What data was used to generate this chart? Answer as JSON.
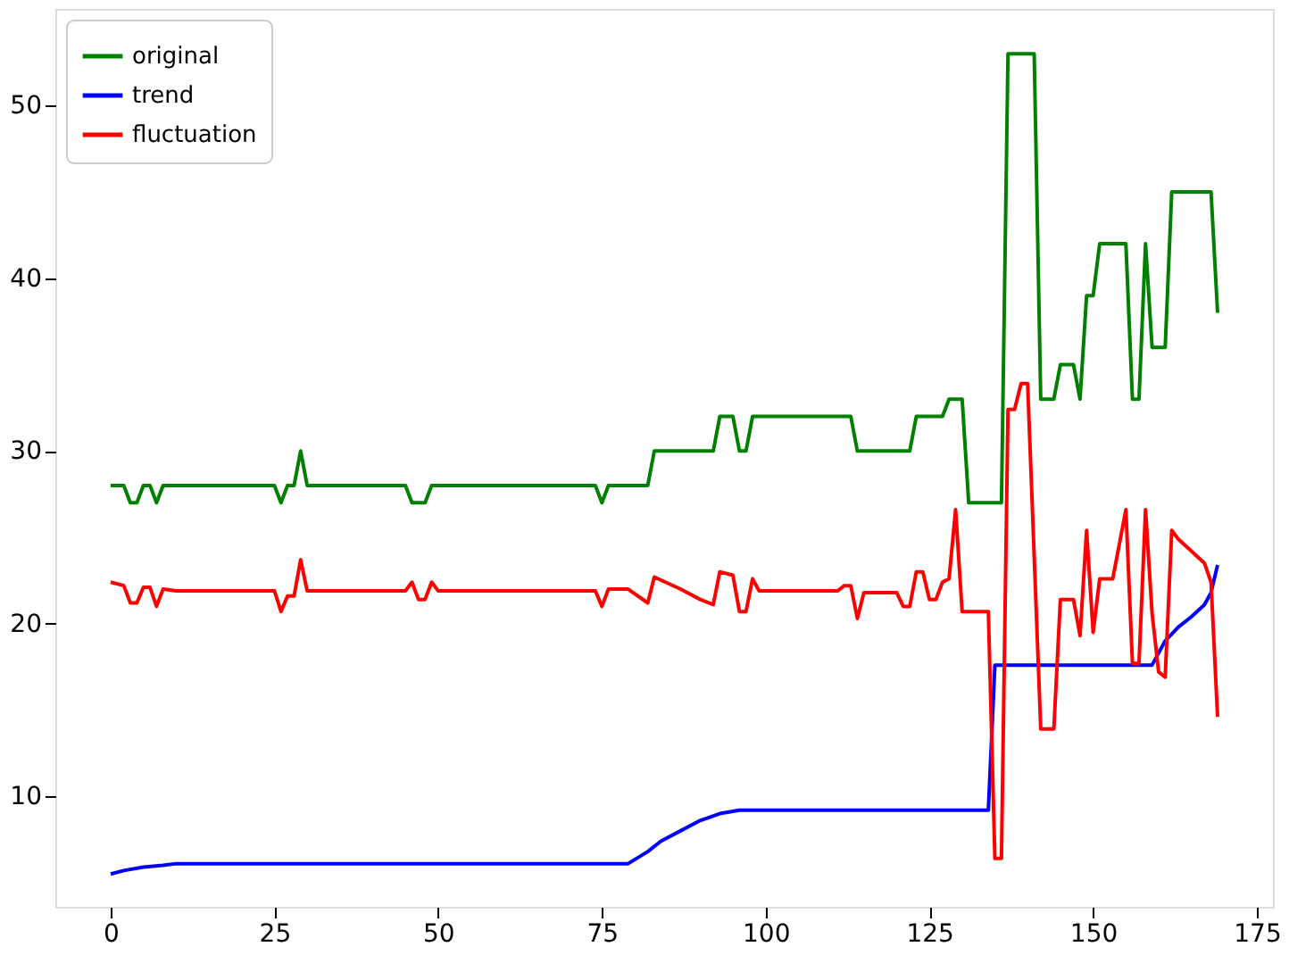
{
  "chart_data": {
    "type": "line",
    "legend": "top left",
    "grid": false,
    "marker": "none",
    "line_style": "solid",
    "xlim": [
      -8.45,
      177.45
    ],
    "xticks": [
      0,
      25,
      50,
      75,
      100,
      125,
      150,
      175
    ],
    "ylim": [
      3.6,
      55.6
    ],
    "yticks": [
      10,
      20,
      30,
      40,
      50
    ],
    "series": [
      {
        "name": "original",
        "color": "#008000",
        "x": [
          0,
          2,
          3,
          4,
          5,
          6,
          7,
          8,
          25,
          26,
          27,
          28,
          29,
          30,
          45,
          46,
          48,
          49,
          74,
          75,
          76,
          82,
          83,
          92,
          93,
          95,
          96,
          97,
          98,
          113,
          114,
          122,
          123,
          127,
          128,
          130,
          131,
          136,
          137,
          141,
          142,
          144,
          145,
          147,
          148,
          149,
          150,
          151,
          155,
          156,
          157,
          158,
          159,
          161,
          162,
          168,
          169
        ],
        "values": [
          28,
          28,
          27,
          27,
          28,
          28,
          27,
          28,
          28,
          27,
          28,
          28,
          30,
          28,
          28,
          27,
          27,
          28,
          28,
          27,
          28,
          28,
          30,
          30,
          32,
          32,
          30,
          30,
          32,
          32,
          30,
          30,
          32,
          32,
          33,
          33,
          27,
          27,
          53,
          53,
          33,
          33,
          35,
          35,
          33,
          39,
          39,
          42,
          42,
          33,
          33,
          42,
          36,
          36,
          45,
          45,
          38
        ]
      },
      {
        "name": "trend",
        "color": "#0000ff",
        "x": [
          0,
          2,
          5,
          8,
          10,
          79,
          82,
          84,
          87,
          90,
          93,
          96,
          134,
          135,
          159,
          160,
          161,
          163,
          165,
          167,
          168,
          169
        ],
        "values": [
          5.5,
          5.7,
          5.9,
          6.0,
          6.1,
          6.1,
          6.8,
          7.4,
          8.0,
          8.6,
          9.0,
          9.2,
          9.2,
          17.6,
          17.6,
          18.3,
          19.0,
          19.8,
          20.4,
          21.1,
          21.8,
          23.4
        ]
      },
      {
        "name": "fluctuation",
        "color": "#ff0000",
        "x": [
          0,
          2,
          3,
          4,
          5,
          6,
          7,
          8,
          10,
          25,
          26,
          27,
          28,
          29,
          30,
          45,
          46,
          47,
          48,
          49,
          50,
          74,
          75,
          76,
          79,
          82,
          83,
          87,
          90,
          92,
          93,
          95,
          96,
          97,
          98,
          99,
          111,
          112,
          113,
          114,
          115,
          120,
          121,
          122,
          123,
          124,
          125,
          126,
          127,
          128,
          129,
          130,
          134,
          135,
          136,
          137,
          138,
          139,
          140,
          142,
          144,
          145,
          147,
          148,
          149,
          150,
          151,
          153,
          155,
          156,
          157,
          158,
          159,
          160,
          161,
          162,
          163,
          165,
          167,
          168,
          169
        ],
        "values": [
          22.4,
          22.2,
          21.2,
          21.2,
          22.1,
          22.1,
          21.0,
          22.0,
          21.9,
          21.9,
          20.7,
          21.6,
          21.6,
          23.7,
          21.9,
          21.9,
          22.4,
          21.4,
          21.4,
          22.4,
          21.9,
          21.9,
          21.0,
          22.0,
          22.0,
          21.2,
          22.7,
          22.0,
          21.4,
          21.1,
          23.0,
          22.8,
          20.7,
          20.7,
          22.6,
          21.9,
          21.9,
          22.2,
          22.2,
          20.3,
          21.8,
          21.8,
          21.0,
          21.0,
          23.0,
          23.0,
          21.4,
          21.4,
          22.4,
          22.6,
          26.6,
          20.7,
          20.7,
          6.4,
          6.4,
          32.4,
          32.4,
          33.9,
          33.9,
          13.9,
          13.9,
          21.4,
          21.4,
          19.3,
          25.4,
          19.5,
          22.6,
          22.6,
          26.6,
          17.7,
          17.7,
          26.6,
          20.6,
          17.2,
          16.9,
          25.4,
          24.9,
          24.2,
          23.5,
          22.4,
          14.6
        ]
      }
    ]
  }
}
